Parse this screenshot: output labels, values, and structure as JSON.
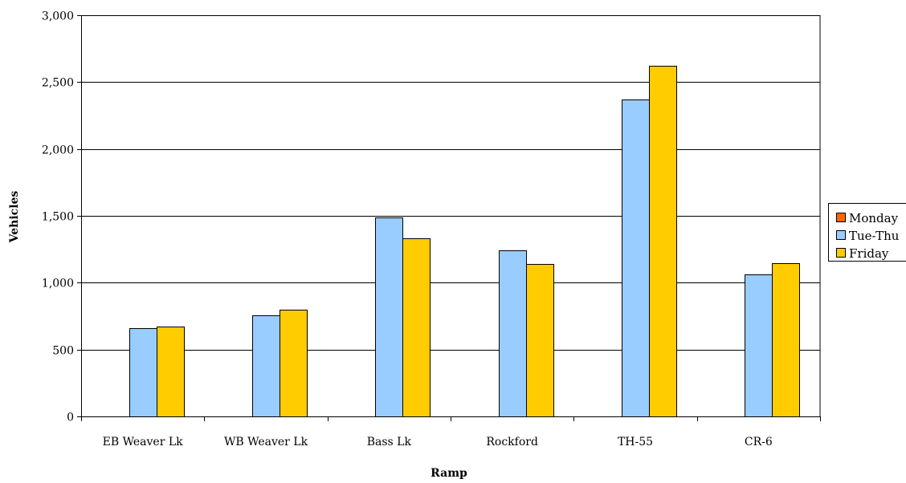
{
  "chart_data": {
    "type": "bar",
    "xlabel": "Ramp",
    "ylabel": "Vehicles",
    "ylim": [
      0,
      3000
    ],
    "yticks": [
      0,
      500,
      1000,
      1500,
      2000,
      2500,
      3000
    ],
    "ytick_labels": [
      "0",
      "500",
      "1,000",
      "1,500",
      "2,000",
      "2,500",
      "3,000"
    ],
    "categories": [
      "EB Weaver Lk",
      "WB Weaver Lk",
      "Bass Lk",
      "Rockford",
      "TH-55",
      "CR-6"
    ],
    "series": [
      {
        "name": "Monday",
        "color": "#ff6600",
        "values": [
          0,
          0,
          0,
          0,
          0,
          0
        ]
      },
      {
        "name": "Tue-Thu",
        "color": "#99ccff",
        "values": [
          660,
          755,
          1490,
          1245,
          2370,
          1065
        ]
      },
      {
        "name": "Friday",
        "color": "#ffcc00",
        "values": [
          675,
          800,
          1335,
          1140,
          2620,
          1145
        ]
      }
    ],
    "grid": "horizontal",
    "legend_position": "right"
  }
}
